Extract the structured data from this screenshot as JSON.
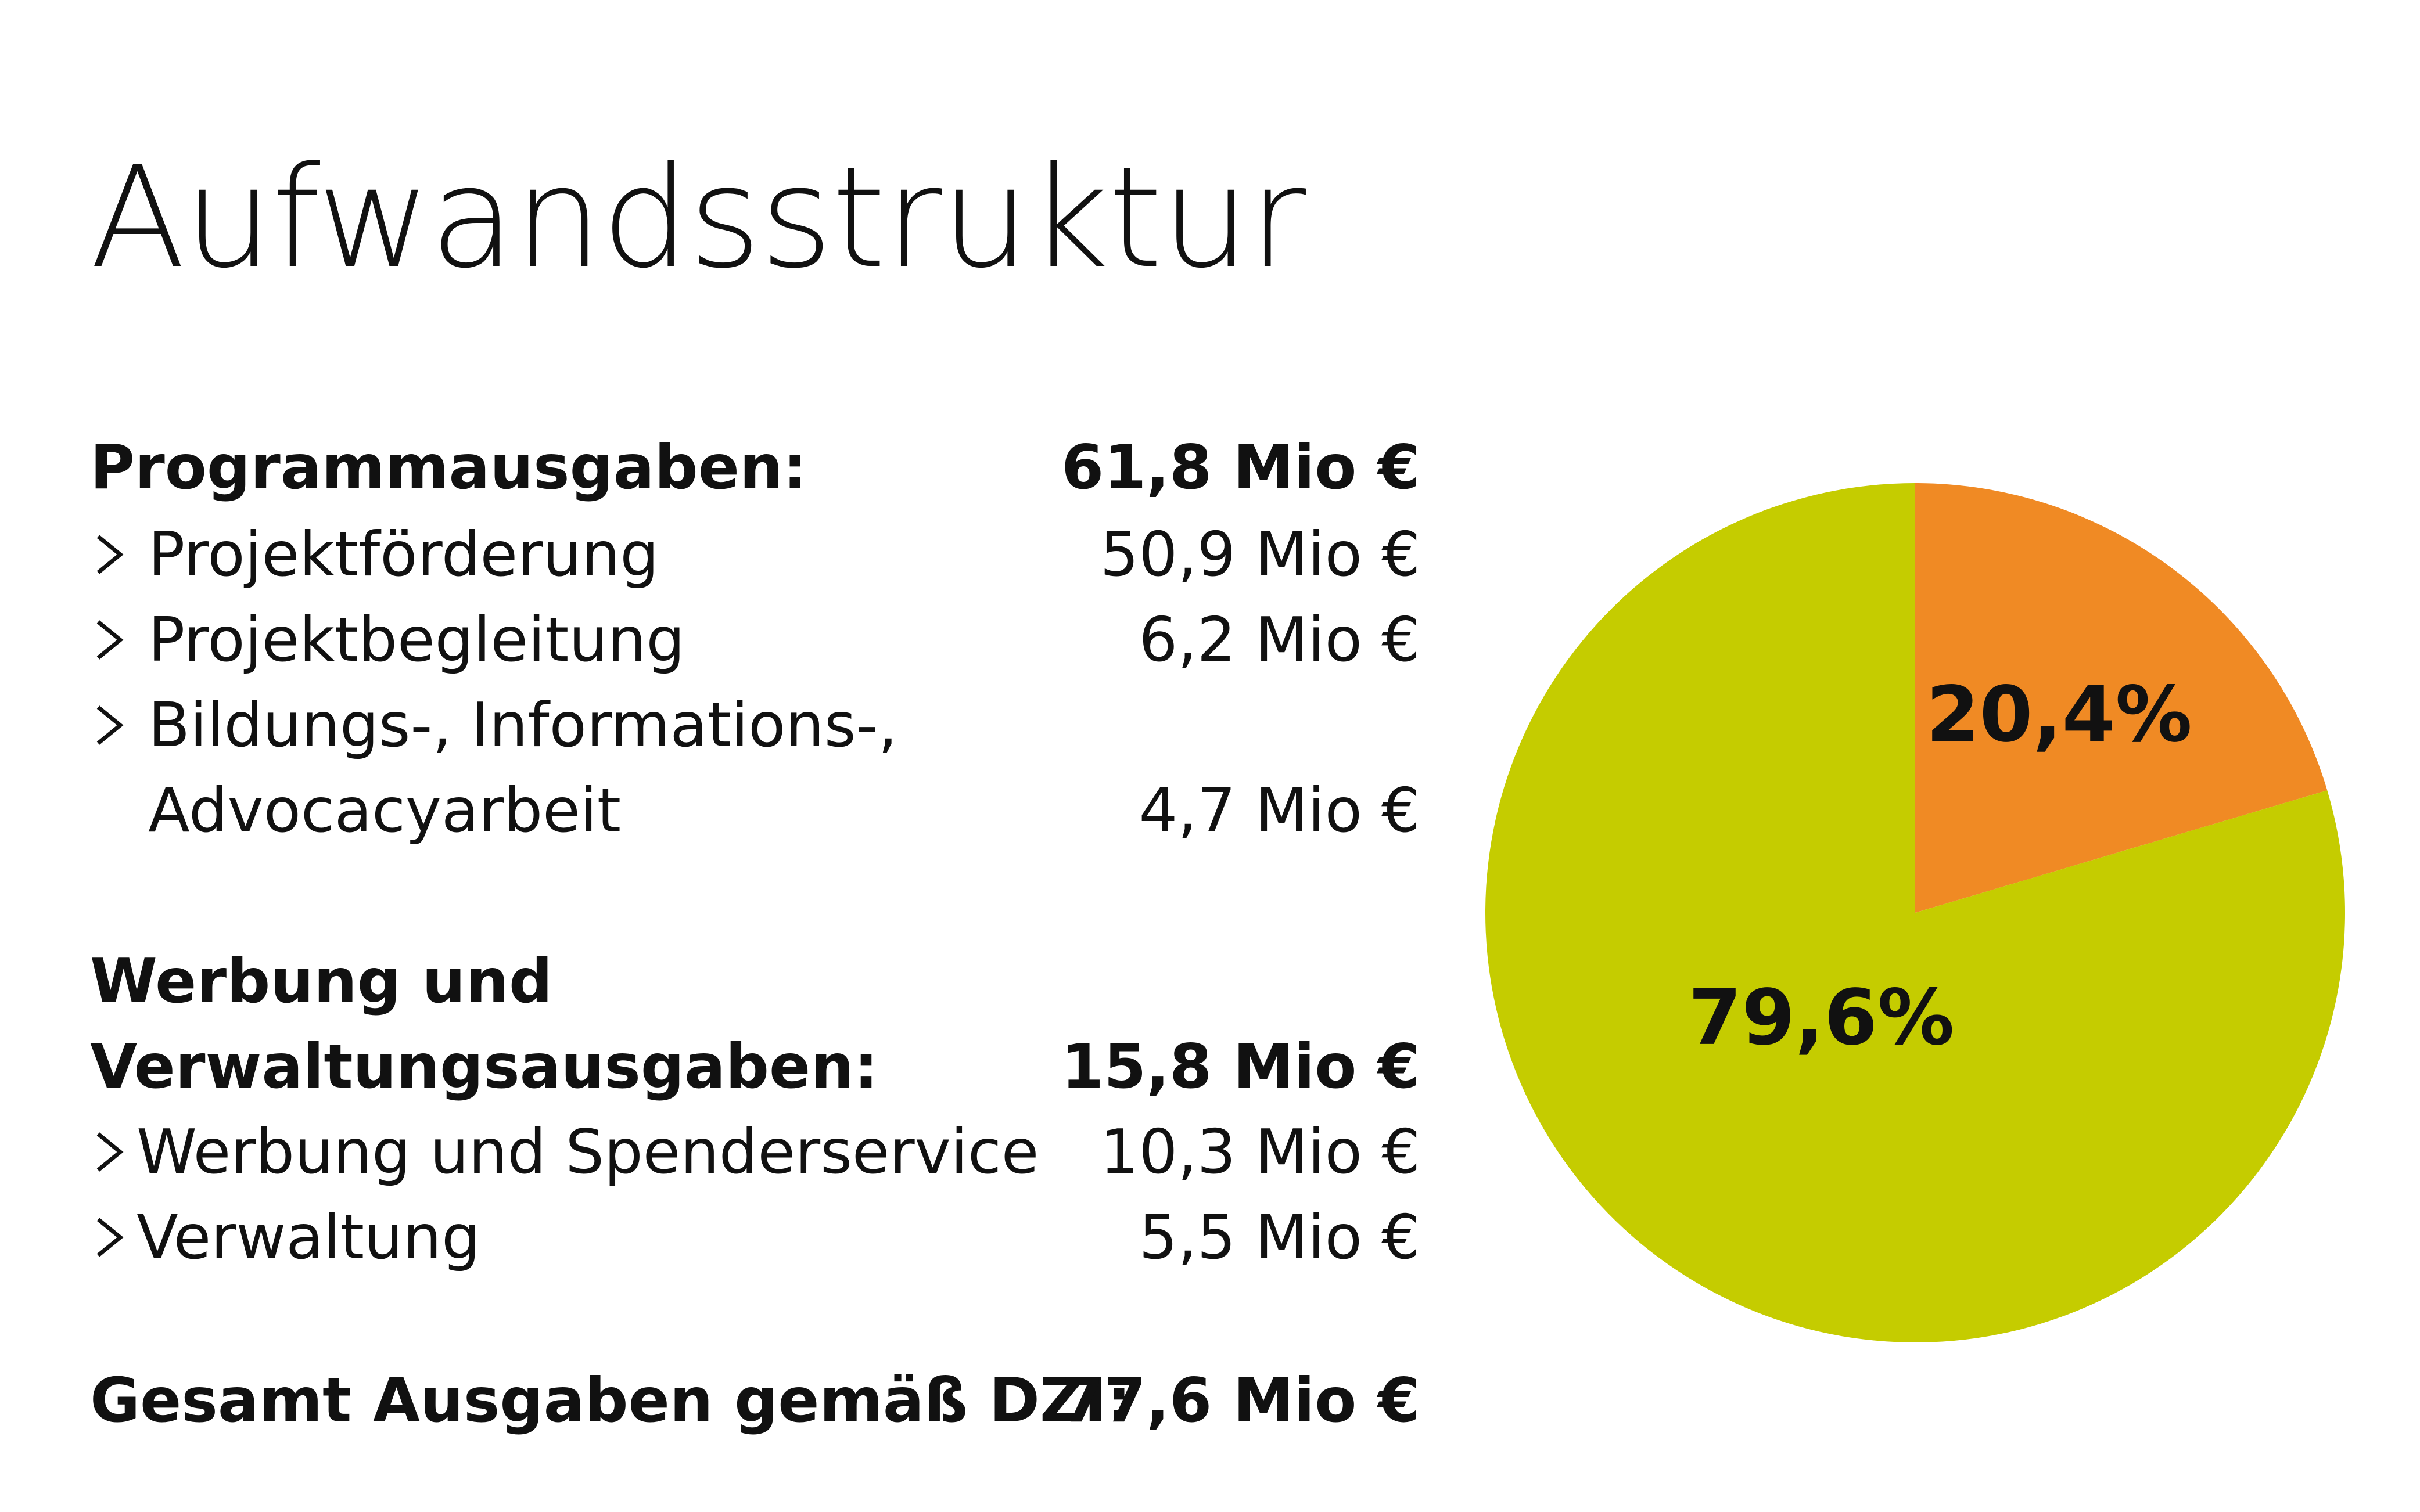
{
  "title": "Aufwandsstruktur",
  "breakdown": {
    "groups": [
      {
        "label": "Programmausgaben:",
        "value": "61,8 Mio €",
        "items": [
          {
            "label": "Projektförderung",
            "value": "50,9 Mio €"
          },
          {
            "label": "Projektbegleitung",
            "value": "6,2 Mio €"
          },
          {
            "label_line1": "Bildungs-, Informations-,",
            "label_line2": "Advocacyarbeit",
            "value": "4,7 Mio €"
          }
        ]
      },
      {
        "label_line1": "Werbung und",
        "label_line2": "Verwaltungsausgaben:",
        "value": "15,8 Mio €",
        "items": [
          {
            "label": "Werbung und Spenderservice",
            "value": "10,3 Mio €"
          },
          {
            "label": "Verwaltung",
            "value": "5,5 Mio €"
          }
        ]
      }
    ],
    "total": {
      "label": "Gesamt Ausgaben gemäß DZI:",
      "value": "77,6 Mio €"
    }
  },
  "chart_data": {
    "type": "pie",
    "slices": [
      {
        "value": 20.4,
        "label": "20,4%",
        "color": "#f08a24"
      },
      {
        "value": 79.6,
        "label": "79,6%",
        "color": "#c5cc00"
      }
    ],
    "start_angle_deg": 0,
    "direction": "clockwise"
  }
}
